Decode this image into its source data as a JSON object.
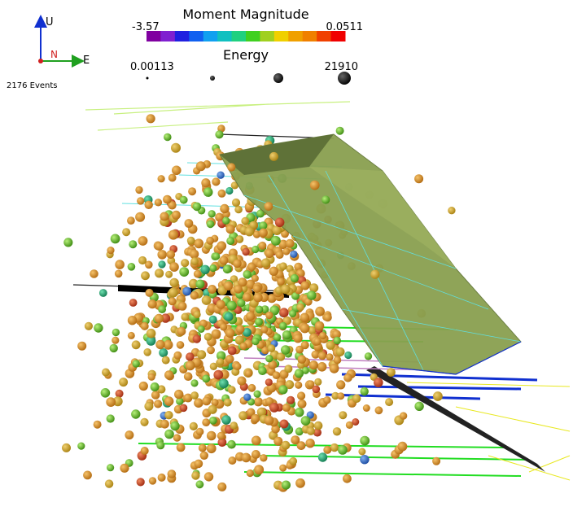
{
  "axes_triad": {
    "up": "U",
    "north": "N",
    "east": "E"
  },
  "event_count": "2176 Events",
  "magnitude_legend": {
    "title": "Moment Magnitude",
    "min": "-3.57",
    "max": "0.0511"
  },
  "energy_legend": {
    "title": "Energy",
    "min": "0.00113",
    "max": "21910"
  }
}
